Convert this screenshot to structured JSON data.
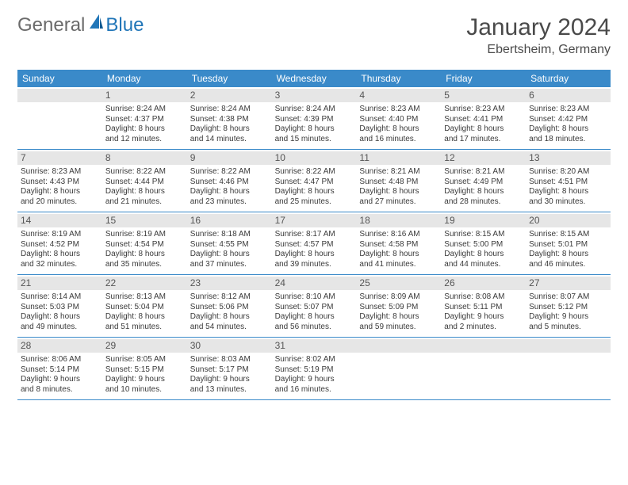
{
  "logo": {
    "general": "General",
    "blue": "Blue"
  },
  "title": "January 2024",
  "location": "Ebertsheim, Germany",
  "colors": {
    "header_bg": "#3a8ac9",
    "header_text": "#ffffff",
    "daynum_bg": "#e6e6e6",
    "daynum_text": "#555555",
    "body_text": "#3a3a3a",
    "title_text": "#4a4a4a",
    "logo_gray": "#6b6b6b",
    "logo_blue": "#2176b8",
    "border": "#3a8ac9"
  },
  "day_names": [
    "Sunday",
    "Monday",
    "Tuesday",
    "Wednesday",
    "Thursday",
    "Friday",
    "Saturday"
  ],
  "weeks": [
    [
      null,
      {
        "n": "1",
        "sr": "Sunrise: 8:24 AM",
        "ss": "Sunset: 4:37 PM",
        "d1": "Daylight: 8 hours",
        "d2": "and 12 minutes."
      },
      {
        "n": "2",
        "sr": "Sunrise: 8:24 AM",
        "ss": "Sunset: 4:38 PM",
        "d1": "Daylight: 8 hours",
        "d2": "and 14 minutes."
      },
      {
        "n": "3",
        "sr": "Sunrise: 8:24 AM",
        "ss": "Sunset: 4:39 PM",
        "d1": "Daylight: 8 hours",
        "d2": "and 15 minutes."
      },
      {
        "n": "4",
        "sr": "Sunrise: 8:23 AM",
        "ss": "Sunset: 4:40 PM",
        "d1": "Daylight: 8 hours",
        "d2": "and 16 minutes."
      },
      {
        "n": "5",
        "sr": "Sunrise: 8:23 AM",
        "ss": "Sunset: 4:41 PM",
        "d1": "Daylight: 8 hours",
        "d2": "and 17 minutes."
      },
      {
        "n": "6",
        "sr": "Sunrise: 8:23 AM",
        "ss": "Sunset: 4:42 PM",
        "d1": "Daylight: 8 hours",
        "d2": "and 18 minutes."
      }
    ],
    [
      {
        "n": "7",
        "sr": "Sunrise: 8:23 AM",
        "ss": "Sunset: 4:43 PM",
        "d1": "Daylight: 8 hours",
        "d2": "and 20 minutes."
      },
      {
        "n": "8",
        "sr": "Sunrise: 8:22 AM",
        "ss": "Sunset: 4:44 PM",
        "d1": "Daylight: 8 hours",
        "d2": "and 21 minutes."
      },
      {
        "n": "9",
        "sr": "Sunrise: 8:22 AM",
        "ss": "Sunset: 4:46 PM",
        "d1": "Daylight: 8 hours",
        "d2": "and 23 minutes."
      },
      {
        "n": "10",
        "sr": "Sunrise: 8:22 AM",
        "ss": "Sunset: 4:47 PM",
        "d1": "Daylight: 8 hours",
        "d2": "and 25 minutes."
      },
      {
        "n": "11",
        "sr": "Sunrise: 8:21 AM",
        "ss": "Sunset: 4:48 PM",
        "d1": "Daylight: 8 hours",
        "d2": "and 27 minutes."
      },
      {
        "n": "12",
        "sr": "Sunrise: 8:21 AM",
        "ss": "Sunset: 4:49 PM",
        "d1": "Daylight: 8 hours",
        "d2": "and 28 minutes."
      },
      {
        "n": "13",
        "sr": "Sunrise: 8:20 AM",
        "ss": "Sunset: 4:51 PM",
        "d1": "Daylight: 8 hours",
        "d2": "and 30 minutes."
      }
    ],
    [
      {
        "n": "14",
        "sr": "Sunrise: 8:19 AM",
        "ss": "Sunset: 4:52 PM",
        "d1": "Daylight: 8 hours",
        "d2": "and 32 minutes."
      },
      {
        "n": "15",
        "sr": "Sunrise: 8:19 AM",
        "ss": "Sunset: 4:54 PM",
        "d1": "Daylight: 8 hours",
        "d2": "and 35 minutes."
      },
      {
        "n": "16",
        "sr": "Sunrise: 8:18 AM",
        "ss": "Sunset: 4:55 PM",
        "d1": "Daylight: 8 hours",
        "d2": "and 37 minutes."
      },
      {
        "n": "17",
        "sr": "Sunrise: 8:17 AM",
        "ss": "Sunset: 4:57 PM",
        "d1": "Daylight: 8 hours",
        "d2": "and 39 minutes."
      },
      {
        "n": "18",
        "sr": "Sunrise: 8:16 AM",
        "ss": "Sunset: 4:58 PM",
        "d1": "Daylight: 8 hours",
        "d2": "and 41 minutes."
      },
      {
        "n": "19",
        "sr": "Sunrise: 8:15 AM",
        "ss": "Sunset: 5:00 PM",
        "d1": "Daylight: 8 hours",
        "d2": "and 44 minutes."
      },
      {
        "n": "20",
        "sr": "Sunrise: 8:15 AM",
        "ss": "Sunset: 5:01 PM",
        "d1": "Daylight: 8 hours",
        "d2": "and 46 minutes."
      }
    ],
    [
      {
        "n": "21",
        "sr": "Sunrise: 8:14 AM",
        "ss": "Sunset: 5:03 PM",
        "d1": "Daylight: 8 hours",
        "d2": "and 49 minutes."
      },
      {
        "n": "22",
        "sr": "Sunrise: 8:13 AM",
        "ss": "Sunset: 5:04 PM",
        "d1": "Daylight: 8 hours",
        "d2": "and 51 minutes."
      },
      {
        "n": "23",
        "sr": "Sunrise: 8:12 AM",
        "ss": "Sunset: 5:06 PM",
        "d1": "Daylight: 8 hours",
        "d2": "and 54 minutes."
      },
      {
        "n": "24",
        "sr": "Sunrise: 8:10 AM",
        "ss": "Sunset: 5:07 PM",
        "d1": "Daylight: 8 hours",
        "d2": "and 56 minutes."
      },
      {
        "n": "25",
        "sr": "Sunrise: 8:09 AM",
        "ss": "Sunset: 5:09 PM",
        "d1": "Daylight: 8 hours",
        "d2": "and 59 minutes."
      },
      {
        "n": "26",
        "sr": "Sunrise: 8:08 AM",
        "ss": "Sunset: 5:11 PM",
        "d1": "Daylight: 9 hours",
        "d2": "and 2 minutes."
      },
      {
        "n": "27",
        "sr": "Sunrise: 8:07 AM",
        "ss": "Sunset: 5:12 PM",
        "d1": "Daylight: 9 hours",
        "d2": "and 5 minutes."
      }
    ],
    [
      {
        "n": "28",
        "sr": "Sunrise: 8:06 AM",
        "ss": "Sunset: 5:14 PM",
        "d1": "Daylight: 9 hours",
        "d2": "and 8 minutes."
      },
      {
        "n": "29",
        "sr": "Sunrise: 8:05 AM",
        "ss": "Sunset: 5:15 PM",
        "d1": "Daylight: 9 hours",
        "d2": "and 10 minutes."
      },
      {
        "n": "30",
        "sr": "Sunrise: 8:03 AM",
        "ss": "Sunset: 5:17 PM",
        "d1": "Daylight: 9 hours",
        "d2": "and 13 minutes."
      },
      {
        "n": "31",
        "sr": "Sunrise: 8:02 AM",
        "ss": "Sunset: 5:19 PM",
        "d1": "Daylight: 9 hours",
        "d2": "and 16 minutes."
      },
      null,
      null,
      null
    ]
  ]
}
